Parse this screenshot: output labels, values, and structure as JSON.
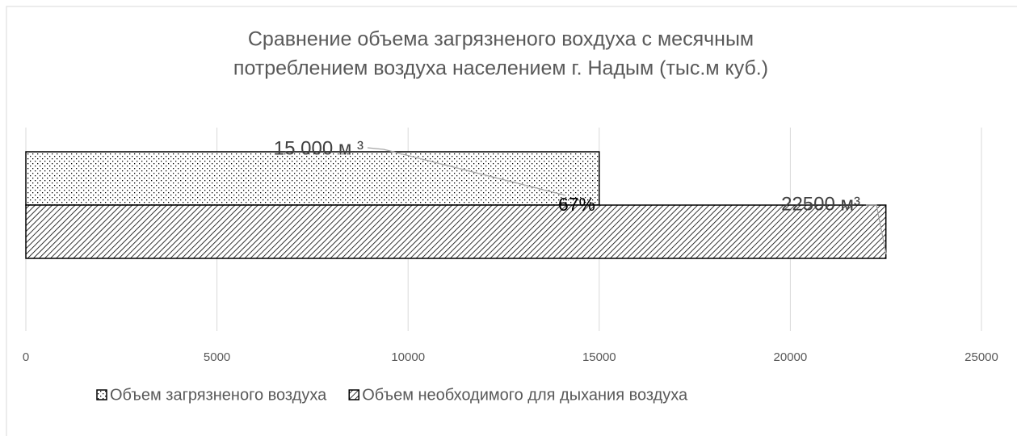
{
  "chart_data": {
    "type": "hbar",
    "title": [
      "Сравнение объема загрязненого вохдуха с месячным",
      "потреблением воздуха населением  г. Надым (тыс.м куб.)"
    ],
    "categories": [
      null
    ],
    "series": [
      {
        "name": "Объем загрязненого воздуха",
        "color": "#000000",
        "pattern": "dots",
        "values": [
          15000
        ],
        "value_labels": [
          "15 000 м ³"
        ]
      },
      {
        "name": "Объем необходимого для дыхания воздуха",
        "color": "#000000",
        "pattern": "hatch",
        "values": [
          22500
        ],
        "value_labels": [
          "22500 м³"
        ]
      }
    ],
    "annotations": [
      {
        "text": "67%"
      }
    ],
    "xlim": [
      0,
      25000
    ],
    "xticks": [
      0,
      5000,
      10000,
      15000,
      20000,
      25000
    ],
    "grid": true,
    "legend": "bottom"
  }
}
